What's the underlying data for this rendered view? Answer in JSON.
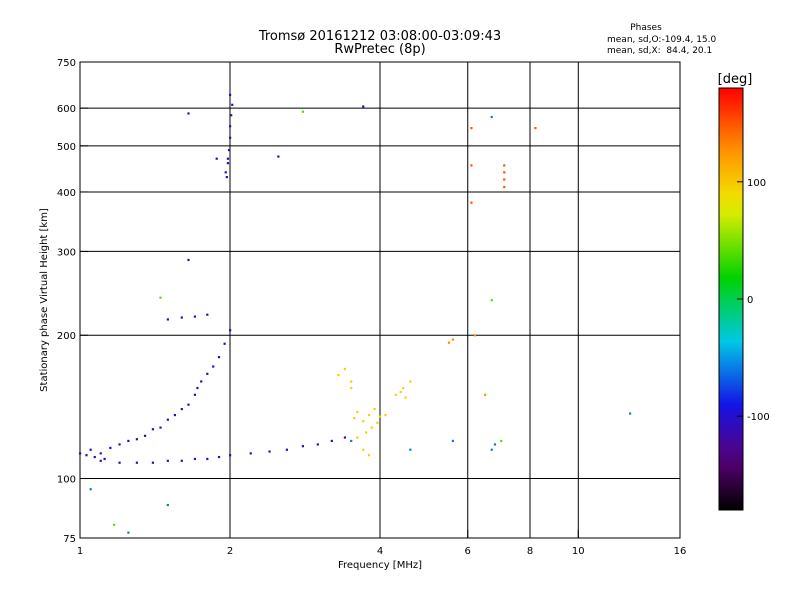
{
  "chart_data": {
    "type": "scatter",
    "title": "Tromsø 20161212 03:08:00-03:09:43",
    "subtitle": "RwPretec (8p)",
    "xlabel": "Frequency [MHz]",
    "ylabel": "Stationary phase Virtual Height [km]",
    "x_scale": "log2",
    "y_scale": "log",
    "xlim": [
      1,
      16
    ],
    "ylim": [
      75,
      750
    ],
    "x_ticks": [
      1,
      2,
      4,
      6,
      8,
      10,
      16
    ],
    "y_ticks": [
      75,
      100,
      200,
      300,
      400,
      500,
      600,
      750
    ],
    "grid": true,
    "stats": {
      "heading": "Phases",
      "line_o": "mean, sd,O:-109.4, 15.0",
      "line_x": "mean, sd,X:  84.4, 20.1"
    },
    "colorbar": {
      "label": "[deg]",
      "range": [
        -180,
        180
      ],
      "ticks": [
        100,
        0,
        -100
      ],
      "colormap": "rainbow (black-purple-blue-cyan-green-yellow-orange-red)"
    },
    "series": [
      {
        "cluster_points": [
          [
            1.0,
            113
          ],
          [
            1.03,
            112
          ],
          [
            1.07,
            111
          ],
          [
            1.1,
            113
          ],
          [
            1.12,
            110
          ],
          [
            1.05,
            115
          ],
          [
            1.15,
            116
          ],
          [
            1.2,
            118
          ],
          [
            1.25,
            120
          ],
          [
            1.3,
            121
          ],
          [
            1.35,
            123
          ],
          [
            1.4,
            127
          ],
          [
            1.45,
            128
          ],
          [
            1.5,
            133
          ],
          [
            1.55,
            136
          ],
          [
            1.6,
            140
          ],
          [
            1.65,
            143
          ],
          [
            1.7,
            150
          ],
          [
            1.72,
            155
          ],
          [
            1.75,
            160
          ],
          [
            1.8,
            166
          ],
          [
            1.85,
            172
          ],
          [
            1.9,
            180
          ],
          [
            1.95,
            192
          ],
          [
            2.0,
            205
          ]
        ],
        "lower_trace": [
          [
            1.1,
            109
          ],
          [
            1.2,
            108
          ],
          [
            1.3,
            108
          ],
          [
            1.4,
            108
          ],
          [
            1.5,
            109
          ],
          [
            1.6,
            109
          ],
          [
            1.7,
            110
          ],
          [
            1.8,
            110
          ],
          [
            1.9,
            111
          ],
          [
            2.0,
            112
          ],
          [
            2.2,
            113
          ],
          [
            2.4,
            114
          ],
          [
            2.6,
            115
          ],
          [
            2.8,
            117
          ],
          [
            3.0,
            118
          ],
          [
            3.2,
            120
          ],
          [
            3.4,
            122
          ]
        ],
        "upper_cluster_f2": [
          [
            1.97,
            430
          ],
          [
            1.98,
            460
          ],
          [
            1.99,
            490
          ],
          [
            2.0,
            520
          ],
          [
            2.0,
            550
          ],
          [
            2.01,
            580
          ],
          [
            2.02,
            610
          ],
          [
            1.96,
            440
          ],
          [
            1.98,
            470
          ],
          [
            2.0,
            640
          ]
        ],
        "patch_1_6": [
          [
            1.5,
            216
          ],
          [
            1.6,
            218
          ],
          [
            1.7,
            219
          ],
          [
            1.8,
            221
          ]
        ],
        "scattered_high": [
          [
            1.65,
            585
          ],
          [
            3.7,
            605
          ],
          [
            2.5,
            475
          ],
          [
            1.65,
            288
          ],
          [
            1.88,
            470
          ]
        ],
        "phase_deg": -110
      },
      {
        "cluster_points": [
          [
            3.55,
            134
          ],
          [
            3.6,
            138
          ],
          [
            3.7,
            132
          ],
          [
            3.8,
            136
          ],
          [
            3.9,
            140
          ],
          [
            4.0,
            135
          ],
          [
            3.75,
            125
          ],
          [
            3.85,
            128
          ],
          [
            3.95,
            131
          ],
          [
            3.6,
            122
          ],
          [
            3.7,
            115
          ],
          [
            3.8,
            112
          ],
          [
            4.1,
            136
          ],
          [
            4.3,
            150
          ],
          [
            4.45,
            155
          ],
          [
            4.6,
            160
          ],
          [
            4.5,
            148
          ],
          [
            4.4,
            152
          ],
          [
            3.3,
            165
          ],
          [
            3.4,
            170
          ],
          [
            3.5,
            160
          ],
          [
            3.5,
            155
          ]
        ],
        "phase_deg": 95
      },
      {
        "cluster_points": [
          [
            6.5,
            150
          ],
          [
            6.2,
            200
          ],
          [
            5.6,
            196
          ],
          [
            5.5,
            193
          ]
        ],
        "phase_deg": 130
      },
      {
        "cluster_points": [
          [
            7.1,
            455
          ],
          [
            7.1,
            440
          ],
          [
            7.1,
            425
          ],
          [
            7.1,
            410
          ],
          [
            6.1,
            545
          ],
          [
            8.2,
            545
          ],
          [
            6.1,
            380
          ],
          [
            6.1,
            455
          ]
        ],
        "phase_deg": 150
      },
      {
        "cluster_points": [
          [
            12.7,
            137
          ],
          [
            6.7,
            575
          ],
          [
            5.6,
            120
          ],
          [
            6.7,
            115
          ],
          [
            6.8,
            118
          ],
          [
            3.5,
            120
          ],
          [
            4.6,
            115
          ],
          [
            1.05,
            95
          ],
          [
            1.5,
            88
          ],
          [
            1.25,
            77
          ]
        ],
        "phase_deg": -60
      },
      {
        "cluster_points": [
          [
            6.7,
            237
          ],
          [
            7.0,
            120
          ],
          [
            1.17,
            80
          ],
          [
            2.8,
            590
          ],
          [
            1.45,
            240
          ]
        ],
        "phase_deg": 40
      }
    ]
  }
}
